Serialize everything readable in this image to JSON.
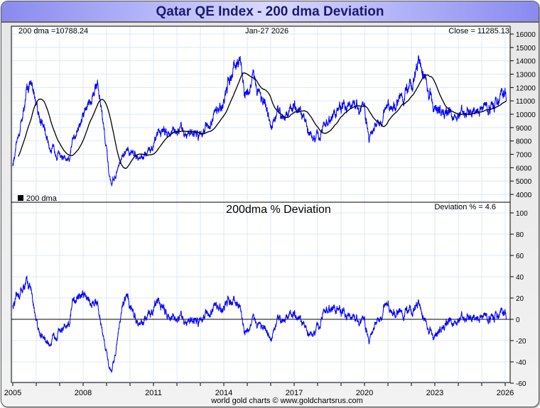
{
  "title": "Qatar QE Index - 200 dma Deviation",
  "footer": "world gold charts © www.goldchartsrus.com",
  "colors": {
    "price": "#0000ff",
    "dma": "#000000",
    "grid": "#dde8f4"
  },
  "chart_data": [
    {
      "type": "line",
      "title": "Qatar QE Index",
      "header_left": "200 dma =10788.24",
      "header_center": "Jan-27  2026",
      "header_right": "Close = 11285.13",
      "legend": "200 dma",
      "ylim": [
        4000,
        16000
      ],
      "yticks": [
        4000,
        5000,
        6000,
        7000,
        8000,
        9000,
        10000,
        11000,
        12000,
        13000,
        14000,
        15000,
        16000
      ],
      "price_keypoints": [
        [
          2005.0,
          6200
        ],
        [
          2005.3,
          9000
        ],
        [
          2005.7,
          12500
        ],
        [
          2006.0,
          11000
        ],
        [
          2006.3,
          9000
        ],
        [
          2006.6,
          7500
        ],
        [
          2007.0,
          7000
        ],
        [
          2007.4,
          6200
        ],
        [
          2007.6,
          8500
        ],
        [
          2007.9,
          9500
        ],
        [
          2008.3,
          11000
        ],
        [
          2008.6,
          12500
        ],
        [
          2008.9,
          9000
        ],
        [
          2009.1,
          5500
        ],
        [
          2009.2,
          4500
        ],
        [
          2009.5,
          6000
        ],
        [
          2009.9,
          7300
        ],
        [
          2010.5,
          6800
        ],
        [
          2011.0,
          7500
        ],
        [
          2011.2,
          8800
        ],
        [
          2012.0,
          8600
        ],
        [
          2013.0,
          8600
        ],
        [
          2013.5,
          9500
        ],
        [
          2014.0,
          11000
        ],
        [
          2014.4,
          13500
        ],
        [
          2014.7,
          14000
        ],
        [
          2014.9,
          11500
        ],
        [
          2015.3,
          12500
        ],
        [
          2015.7,
          11000
        ],
        [
          2016.0,
          9000
        ],
        [
          2016.4,
          10000
        ],
        [
          2017.0,
          10500
        ],
        [
          2017.4,
          9500
        ],
        [
          2017.9,
          8000
        ],
        [
          2018.3,
          9000
        ],
        [
          2018.7,
          10000
        ],
        [
          2019.0,
          10500
        ],
        [
          2019.6,
          10400
        ],
        [
          2020.0,
          10300
        ],
        [
          2020.2,
          8500
        ],
        [
          2020.6,
          9500
        ],
        [
          2021.0,
          10500
        ],
        [
          2021.6,
          11200
        ],
        [
          2022.0,
          12000
        ],
        [
          2022.3,
          14000
        ],
        [
          2022.5,
          13000
        ],
        [
          2022.8,
          11500
        ],
        [
          2023.0,
          10500
        ],
        [
          2023.5,
          10000
        ],
        [
          2024.0,
          10000
        ],
        [
          2024.5,
          10000
        ],
        [
          2025.0,
          10500
        ],
        [
          2025.5,
          10700
        ],
        [
          2025.8,
          11300
        ],
        [
          2026.05,
          11285
        ]
      ]
    },
    {
      "type": "line",
      "title": "200dma  %  Deviation",
      "header_right": "Deviation % = 4.6",
      "ylim": [
        -60,
        100
      ],
      "yticks": [
        -60,
        -40,
        -20,
        0,
        20,
        40,
        60,
        80,
        100
      ]
    }
  ],
  "xaxis": {
    "range": [
      2005,
      2026.1
    ],
    "ticks": [
      "2005",
      "2008",
      "2011",
      "2014",
      "2017",
      "2020",
      "2023",
      "2026"
    ]
  }
}
